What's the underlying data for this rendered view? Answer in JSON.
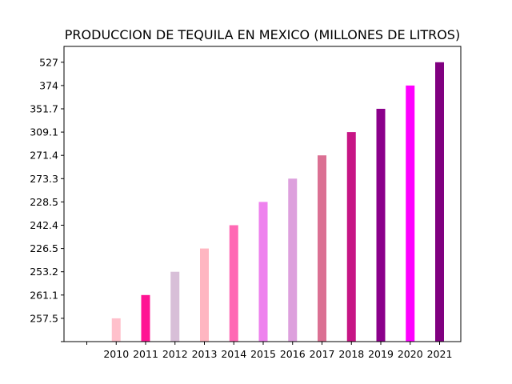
{
  "chart_data": {
    "type": "bar",
    "title": "PRODUCCION DE TEQUILA EN MEXICO (MILLONES DE LITROS)",
    "xlabel": "",
    "ylabel": "",
    "categories": [
      "",
      "2010",
      "2011",
      "2012",
      "2013",
      "2014",
      "2015",
      "2016",
      "2017",
      "2018",
      "2019",
      "2020",
      "2021"
    ],
    "y_tick_labels": [
      "",
      "257.5",
      "261.1",
      "253.2",
      "226.5",
      "242.4",
      "228.5",
      "273.3",
      "271.4",
      "309.1",
      "351.7",
      "374",
      "527"
    ],
    "values": [
      {
        "category": "2010",
        "value": "257.5",
        "level": 1,
        "color": "#ffc0cb"
      },
      {
        "category": "2011",
        "value": "261.1",
        "level": 2,
        "color": "#ff1493"
      },
      {
        "category": "2012",
        "value": "253.2",
        "level": 3,
        "color": "#d8bfd8"
      },
      {
        "category": "2013",
        "value": "226.5",
        "level": 4,
        "color": "#ffb6c1"
      },
      {
        "category": "2014",
        "value": "242.4",
        "level": 5,
        "color": "#ff69b4"
      },
      {
        "category": "2015",
        "value": "228.5",
        "level": 6,
        "color": "#ee82ee"
      },
      {
        "category": "2016",
        "value": "273.3",
        "level": 7,
        "color": "#dda0dd"
      },
      {
        "category": "2017",
        "value": "271.4",
        "level": 8,
        "color": "#db7093"
      },
      {
        "category": "2018",
        "value": "309.1",
        "level": 9,
        "color": "#c71585"
      },
      {
        "category": "2019",
        "value": "351.7",
        "level": 10,
        "color": "#8b008b"
      },
      {
        "category": "2020",
        "value": "374",
        "level": 11,
        "color": "#ff00ff"
      },
      {
        "category": "2021",
        "value": "527",
        "level": 12,
        "color": "#800080"
      }
    ],
    "y_axis": "categorical (tick labels are the values, drawn as equally spaced levels)",
    "grid": false,
    "legend": "none"
  }
}
